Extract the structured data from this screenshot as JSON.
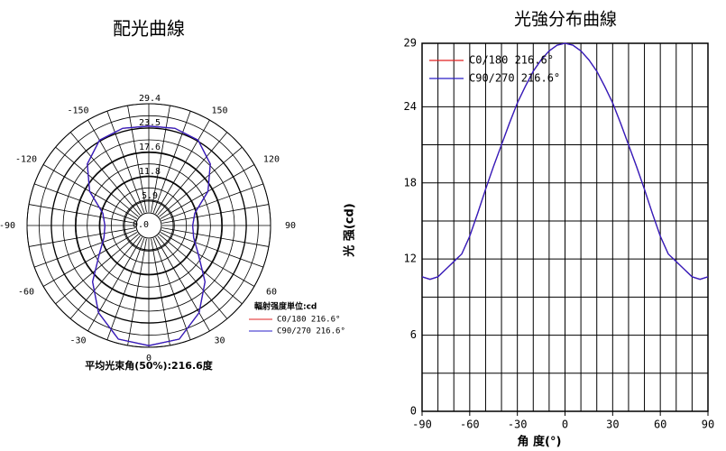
{
  "chart_data": [
    {
      "type": "polar",
      "title": "配光曲線",
      "theta": [
        -180,
        -165,
        -150,
        -135,
        -120,
        -105,
        -90,
        -75,
        -60,
        -45,
        -30,
        -15,
        0,
        15,
        30,
        45,
        60,
        75,
        90,
        105,
        120,
        135,
        150,
        165,
        180
      ],
      "series": [
        {
          "name": "C0/180 216.6°",
          "color": "#e02020",
          "values": [
            24,
            24.3,
            23.8,
            21,
            16.5,
            11.5,
            10.6,
            11.2,
            13.8,
            19.2,
            24.3,
            28.4,
            29,
            28.4,
            24.3,
            19.2,
            13.8,
            11.2,
            10.6,
            11.5,
            16.5,
            21,
            23.8,
            24.3,
            24
          ]
        },
        {
          "name": "C90/270 216.6°",
          "color": "#2a1fc8",
          "values": [
            24,
            24.3,
            23.8,
            21,
            16.5,
            11.5,
            10.6,
            11.2,
            13.8,
            19.2,
            24.3,
            28.4,
            29,
            28.4,
            24.3,
            19.2,
            13.8,
            11.2,
            10.6,
            11.5,
            16.5,
            21,
            23.8,
            24.3,
            24
          ]
        }
      ],
      "rlim": [
        0,
        29.4
      ],
      "rticks": [
        {
          "value": 0,
          "label": "0.0"
        },
        5.9,
        11.8,
        17.6,
        23.5,
        29.4
      ],
      "thetaticks": [
        -150,
        150,
        -120,
        120,
        -90,
        90,
        -60,
        60,
        -30,
        30,
        0
      ],
      "legend_title": "輻射强度単位:cd",
      "note": "平均光束角(50%):216.6度"
    },
    {
      "type": "line",
      "title": "光強分布曲線",
      "xlabel": "角 度(°)",
      "ylabel": "光 强(cd)",
      "x": [
        -90,
        -85,
        -80,
        -75,
        -70,
        -65,
        -60,
        -55,
        -50,
        -45,
        -40,
        -35,
        -30,
        -25,
        -20,
        -15,
        -10,
        -5,
        0,
        5,
        10,
        15,
        20,
        25,
        30,
        35,
        40,
        45,
        50,
        55,
        60,
        65,
        70,
        75,
        80,
        85,
        90
      ],
      "series": [
        {
          "name": "C0/180 216.6°",
          "color": "#e02020",
          "values": [
            10.6,
            10.4,
            10.6,
            11.2,
            11.8,
            12.4,
            13.8,
            15.6,
            17.5,
            19.3,
            21,
            22.7,
            24.3,
            25.6,
            26.8,
            27.7,
            28.4,
            28.85,
            29,
            28.85,
            28.4,
            27.7,
            26.8,
            25.6,
            24.3,
            22.7,
            21,
            19.3,
            17.5,
            15.6,
            13.8,
            12.4,
            11.8,
            11.2,
            10.6,
            10.4,
            10.6
          ]
        },
        {
          "name": "C90/270 216.6°",
          "color": "#2a1fc8",
          "values": [
            10.6,
            10.4,
            10.6,
            11.2,
            11.8,
            12.4,
            13.8,
            15.6,
            17.5,
            19.3,
            21,
            22.7,
            24.3,
            25.6,
            26.8,
            27.7,
            28.4,
            28.85,
            29,
            28.85,
            28.4,
            27.7,
            26.8,
            25.6,
            24.3,
            22.7,
            21,
            19.3,
            17.5,
            15.6,
            13.8,
            12.4,
            11.8,
            11.2,
            10.6,
            10.4,
            10.6
          ]
        }
      ],
      "xlim": [
        -90,
        90
      ],
      "ylim": [
        0,
        29
      ],
      "xticks": [
        -90,
        -60,
        -30,
        0,
        30,
        60,
        90
      ],
      "yticks": [
        0,
        6,
        12,
        18,
        24,
        29
      ],
      "grid": true,
      "legend": "upper left"
    }
  ]
}
